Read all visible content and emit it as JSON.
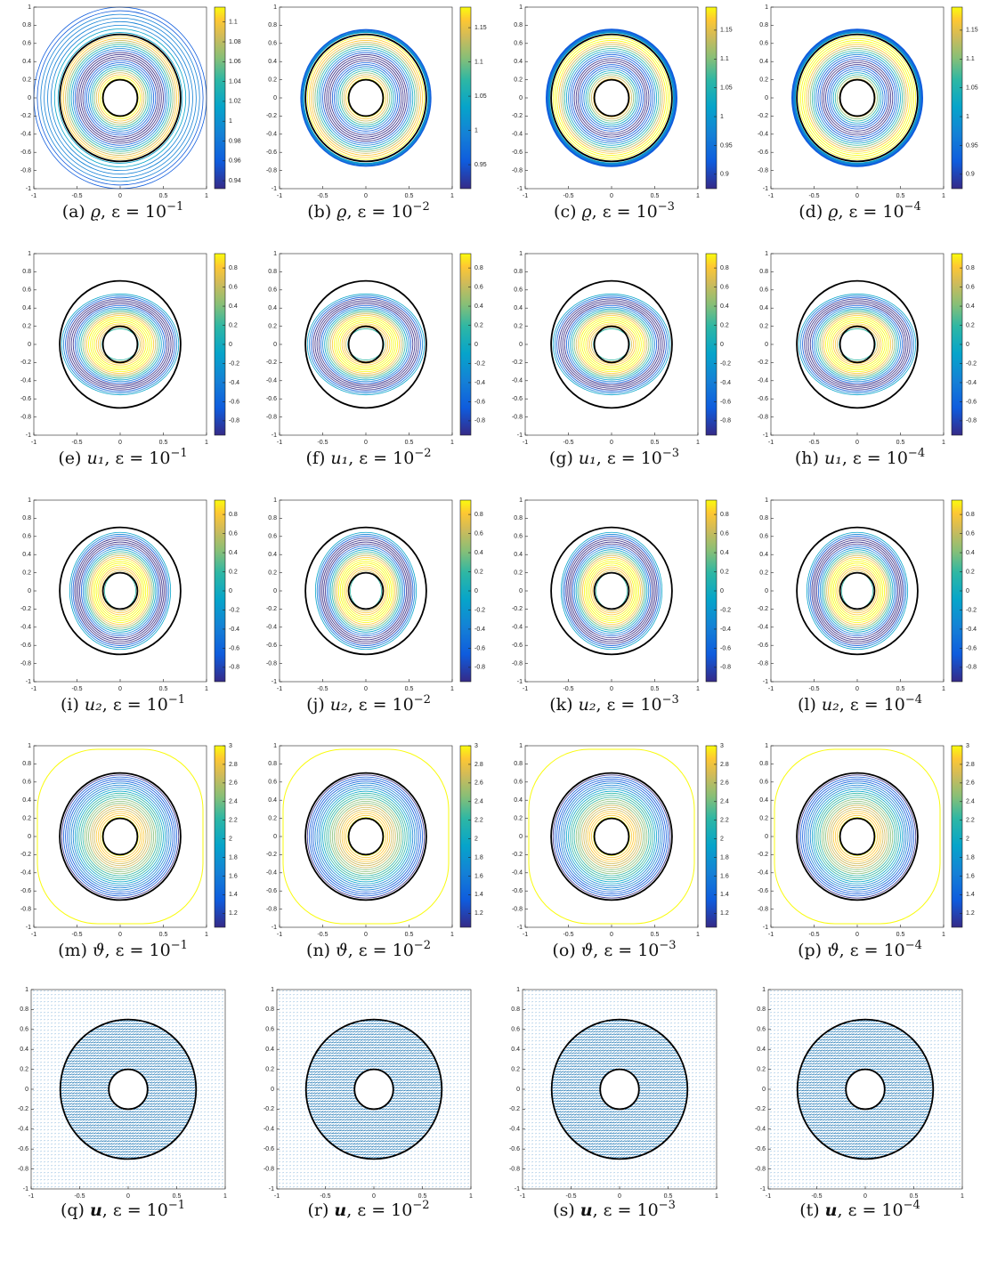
{
  "axes": {
    "xticks": [
      -1,
      -0.5,
      0,
      0.5,
      1
    ],
    "yticks": [
      -1,
      -0.8,
      -0.6,
      -0.4,
      -0.2,
      0,
      0.2,
      0.4,
      0.6,
      0.8,
      1
    ]
  },
  "panels": [
    {
      "caption": {
        "letter": "(a)",
        "var": "ϱ",
        "rest": ", ε = 10",
        "exponent": "−1"
      },
      "colorbar": {
        "lim": [
          0.932,
          1.115
        ],
        "ticks": [
          0.94,
          0.96,
          0.98,
          1,
          1.02,
          1.04,
          1.06,
          1.08,
          1.1
        ]
      }
    },
    {
      "caption": {
        "letter": "(b)",
        "var": "ϱ",
        "rest": ", ε = 10",
        "exponent": "−2"
      },
      "colorbar": {
        "lim": [
          0.915,
          1.18
        ],
        "ticks": [
          0.95,
          1,
          1.05,
          1.1,
          1.15
        ]
      }
    },
    {
      "caption": {
        "letter": "(c)",
        "var": "ϱ",
        "rest": ", ε = 10",
        "exponent": "−3"
      },
      "colorbar": {
        "lim": [
          0.875,
          1.19
        ],
        "ticks": [
          0.9,
          0.95,
          1,
          1.05,
          1.1,
          1.15
        ]
      }
    },
    {
      "caption": {
        "letter": "(d)",
        "var": "ϱ",
        "rest": ", ε = 10",
        "exponent": "−4"
      },
      "colorbar": {
        "lim": [
          0.875,
          1.19
        ],
        "ticks": [
          0.9,
          0.95,
          1,
          1.05,
          1.1,
          1.15
        ]
      }
    },
    {
      "caption": {
        "letter": "(e)",
        "var": "u₁",
        "rest": ", ε = 10",
        "exponent": "−1"
      },
      "colorbar": {
        "lim": [
          -0.95,
          0.95
        ],
        "ticks": [
          -0.8,
          -0.6,
          -0.4,
          -0.2,
          0,
          0.2,
          0.4,
          0.6,
          0.8
        ]
      }
    },
    {
      "caption": {
        "letter": "(f)",
        "var": "u₁",
        "rest": ", ε = 10",
        "exponent": "−2"
      },
      "colorbar": {
        "lim": [
          -0.95,
          0.95
        ],
        "ticks": [
          -0.8,
          -0.6,
          -0.4,
          -0.2,
          0,
          0.2,
          0.4,
          0.6,
          0.8
        ]
      }
    },
    {
      "caption": {
        "letter": "(g)",
        "var": "u₁",
        "rest": ", ε = 10",
        "exponent": "−3"
      },
      "colorbar": {
        "lim": [
          -0.95,
          0.95
        ],
        "ticks": [
          -0.8,
          -0.6,
          -0.4,
          -0.2,
          0,
          0.2,
          0.4,
          0.6,
          0.8
        ]
      }
    },
    {
      "caption": {
        "letter": "(h)",
        "var": "u₁",
        "rest": ", ε = 10",
        "exponent": "−4"
      },
      "colorbar": {
        "lim": [
          -0.95,
          0.95
        ],
        "ticks": [
          -0.8,
          -0.6,
          -0.4,
          -0.2,
          0,
          0.2,
          0.4,
          0.6,
          0.8
        ]
      }
    },
    {
      "caption": {
        "letter": "(i)",
        "var": "u₂",
        "rest": ", ε = 10",
        "exponent": "−1"
      },
      "colorbar": {
        "lim": [
          -0.95,
          0.95
        ],
        "ticks": [
          -0.8,
          -0.6,
          -0.4,
          -0.2,
          0,
          0.2,
          0.4,
          0.6,
          0.8
        ]
      }
    },
    {
      "caption": {
        "letter": "(j)",
        "var": "u₂",
        "rest": ", ε = 10",
        "exponent": "−2"
      },
      "colorbar": {
        "lim": [
          -0.95,
          0.95
        ],
        "ticks": [
          -0.8,
          -0.6,
          -0.4,
          -0.2,
          0,
          0.2,
          0.4,
          0.6,
          0.8
        ]
      }
    },
    {
      "caption": {
        "letter": "(k)",
        "var": "u₂",
        "rest": ", ε = 10",
        "exponent": "−3"
      },
      "colorbar": {
        "lim": [
          -0.95,
          0.95
        ],
        "ticks": [
          -0.8,
          -0.6,
          -0.4,
          -0.2,
          0,
          0.2,
          0.4,
          0.6,
          0.8
        ]
      }
    },
    {
      "caption": {
        "letter": "(l)",
        "var": "u₂",
        "rest": ", ε = 10",
        "exponent": "−4"
      },
      "colorbar": {
        "lim": [
          -0.95,
          0.95
        ],
        "ticks": [
          -0.8,
          -0.6,
          -0.4,
          -0.2,
          0,
          0.2,
          0.4,
          0.6,
          0.8
        ]
      }
    },
    {
      "caption": {
        "letter": "(m)",
        "var": "ϑ",
        "rest": ", ε = 10",
        "exponent": "−1"
      },
      "colorbar": {
        "lim": [
          1.05,
          3
        ],
        "ticks": [
          1.2,
          1.4,
          1.6,
          1.8,
          2,
          2.2,
          2.4,
          2.6,
          2.8,
          3
        ]
      }
    },
    {
      "caption": {
        "letter": "(n)",
        "var": "ϑ",
        "rest": ", ε = 10",
        "exponent": "−2"
      },
      "colorbar": {
        "lim": [
          1.05,
          3
        ],
        "ticks": [
          1.2,
          1.4,
          1.6,
          1.8,
          2,
          2.2,
          2.4,
          2.6,
          2.8,
          3
        ]
      }
    },
    {
      "caption": {
        "letter": "(o)",
        "var": "ϑ",
        "rest": ", ε = 10",
        "exponent": "−3"
      },
      "colorbar": {
        "lim": [
          1.05,
          3
        ],
        "ticks": [
          1.2,
          1.4,
          1.6,
          1.8,
          2,
          2.2,
          2.4,
          2.6,
          2.8,
          3
        ]
      }
    },
    {
      "caption": {
        "letter": "(p)",
        "var": "ϑ",
        "rest": ", ε = 10",
        "exponent": "−4"
      },
      "colorbar": {
        "lim": [
          1.05,
          3
        ],
        "ticks": [
          1.2,
          1.4,
          1.6,
          1.8,
          2,
          2.2,
          2.4,
          2.6,
          2.8,
          3
        ]
      }
    },
    {
      "caption": {
        "letter": "(q)",
        "var": "u",
        "rest": ", ε = 10",
        "exponent": "−1"
      }
    },
    {
      "caption": {
        "letter": "(r)",
        "var": "u",
        "rest": ", ε = 10",
        "exponent": "−2"
      }
    },
    {
      "caption": {
        "letter": "(s)",
        "var": "u",
        "rest": ", ε = 10",
        "exponent": "−3"
      }
    },
    {
      "caption": {
        "letter": "(t)",
        "var": "u",
        "rest": ", ε = 10",
        "exponent": "−4"
      }
    }
  ]
}
